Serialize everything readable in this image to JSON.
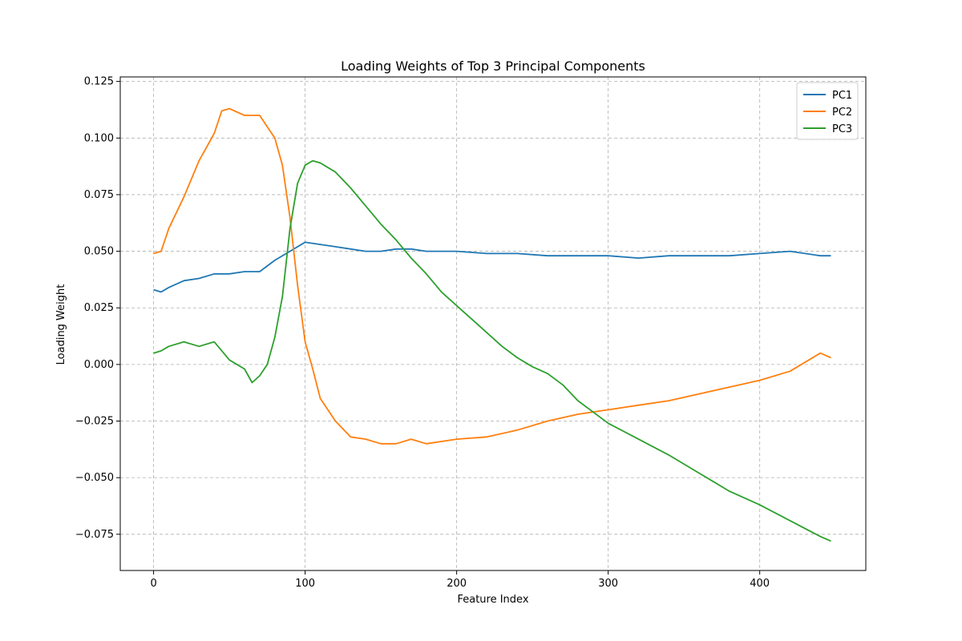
{
  "chart_data": {
    "type": "line",
    "title": "Loading Weights of Top 3 Principal Components",
    "xlabel": "Feature Index",
    "ylabel": "Loading Weight",
    "xlim": [
      -22,
      470
    ],
    "ylim": [
      -0.091,
      0.127
    ],
    "xticks": [
      0,
      100,
      200,
      300,
      400
    ],
    "xtick_labels": [
      "0",
      "100",
      "200",
      "300",
      "400"
    ],
    "yticks": [
      -0.075,
      -0.05,
      -0.025,
      0.0,
      0.025,
      0.05,
      0.075,
      0.1,
      0.125
    ],
    "ytick_labels": [
      "−0.075",
      "−0.050",
      "−0.025",
      "0.000",
      "0.025",
      "0.050",
      "0.075",
      "0.100",
      "0.125"
    ],
    "grid": true,
    "grid_style": "dashed",
    "legend_position": "upper right",
    "colors": [
      "#1f77b4",
      "#ff7f0e",
      "#2ca02c"
    ],
    "series": [
      {
        "name": "PC1",
        "x": [
          0,
          5,
          10,
          20,
          30,
          40,
          50,
          60,
          70,
          80,
          90,
          100,
          110,
          120,
          130,
          140,
          150,
          160,
          170,
          180,
          190,
          200,
          220,
          240,
          260,
          280,
          300,
          320,
          340,
          360,
          380,
          400,
          420,
          440,
          447
        ],
        "y": [
          0.033,
          0.032,
          0.034,
          0.037,
          0.038,
          0.04,
          0.04,
          0.041,
          0.041,
          0.046,
          0.05,
          0.054,
          0.053,
          0.052,
          0.051,
          0.05,
          0.05,
          0.051,
          0.051,
          0.05,
          0.05,
          0.05,
          0.049,
          0.049,
          0.048,
          0.048,
          0.048,
          0.047,
          0.048,
          0.048,
          0.048,
          0.049,
          0.05,
          0.048,
          0.048
        ]
      },
      {
        "name": "PC2",
        "x": [
          0,
          5,
          10,
          20,
          30,
          40,
          45,
          50,
          60,
          70,
          75,
          80,
          85,
          90,
          95,
          100,
          105,
          110,
          120,
          130,
          140,
          150,
          160,
          170,
          180,
          200,
          220,
          240,
          260,
          280,
          300,
          320,
          340,
          360,
          380,
          400,
          420,
          440,
          447
        ],
        "y": [
          0.049,
          0.05,
          0.06,
          0.074,
          0.09,
          0.102,
          0.112,
          0.113,
          0.11,
          0.11,
          0.105,
          0.1,
          0.088,
          0.065,
          0.035,
          0.01,
          -0.002,
          -0.015,
          -0.025,
          -0.032,
          -0.033,
          -0.035,
          -0.035,
          -0.033,
          -0.035,
          -0.033,
          -0.032,
          -0.029,
          -0.025,
          -0.022,
          -0.02,
          -0.018,
          -0.016,
          -0.013,
          -0.01,
          -0.007,
          -0.003,
          0.005,
          0.003
        ]
      },
      {
        "name": "PC3",
        "x": [
          0,
          5,
          10,
          20,
          30,
          40,
          50,
          60,
          65,
          70,
          75,
          80,
          85,
          90,
          95,
          100,
          105,
          110,
          120,
          130,
          140,
          150,
          160,
          170,
          180,
          190,
          200,
          210,
          220,
          230,
          240,
          250,
          260,
          270,
          280,
          290,
          300,
          320,
          340,
          360,
          380,
          400,
          420,
          440,
          447
        ],
        "y": [
          0.005,
          0.006,
          0.008,
          0.01,
          0.008,
          0.01,
          0.002,
          -0.002,
          -0.008,
          -0.005,
          0.0,
          0.012,
          0.03,
          0.06,
          0.08,
          0.088,
          0.09,
          0.089,
          0.085,
          0.078,
          0.07,
          0.062,
          0.055,
          0.047,
          0.04,
          0.032,
          0.026,
          0.02,
          0.014,
          0.008,
          0.003,
          -0.001,
          -0.004,
          -0.009,
          -0.016,
          -0.021,
          -0.026,
          -0.033,
          -0.04,
          -0.048,
          -0.056,
          -0.062,
          -0.069,
          -0.076,
          -0.078
        ]
      }
    ]
  }
}
